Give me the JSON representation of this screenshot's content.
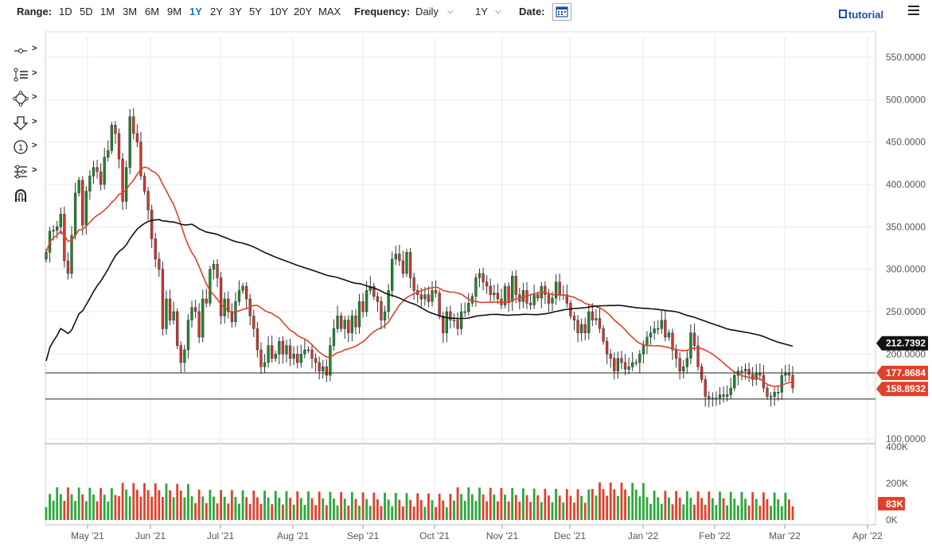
{
  "toolbar": {
    "range_label": "Range:",
    "ranges": [
      "1D",
      "5D",
      "1M",
      "3M",
      "6M",
      "9M",
      "1Y",
      "2Y",
      "3Y",
      "5Y",
      "10Y",
      "20Y",
      "MAX"
    ],
    "active_range": "1Y",
    "frequency_label": "Frequency:",
    "frequency_value": "Daily",
    "period_value": "1Y",
    "date_label": "Date:",
    "tutorial_label": "tutorial"
  },
  "tools": [
    {
      "icon": "crosshair-line-icon"
    },
    {
      "icon": "trend-lines-icon"
    },
    {
      "icon": "shapes-icon"
    },
    {
      "icon": "arrow-down-icon"
    },
    {
      "icon": "number-marker-icon",
      "glyph": "1"
    },
    {
      "icon": "fibonacci-tool-icon"
    },
    {
      "icon": "magnet-icon"
    }
  ],
  "colors": {
    "up": "#1a8a2a",
    "down": "#d9342b",
    "ma_fast": "#e2402b",
    "ma_slow": "#111111",
    "grid": "#e8e8e8"
  },
  "chart_data": {
    "type": "candlestick",
    "title": "",
    "xlabel": "",
    "ylabel": "",
    "ylim": [
      100,
      560
    ],
    "x_ticks": [
      "May '21",
      "Jun '21",
      "Jul '21",
      "Aug '21",
      "Sep '21",
      "Oct '21",
      "Nov '21",
      "Dec '21",
      "Jan '22",
      "Feb '22",
      "Mar '22",
      "Apr '22"
    ],
    "y_ticks": [
      "550.0000",
      "500.0000",
      "450.0000",
      "400.0000",
      "350.0000",
      "300.0000",
      "250.0000",
      "200.0000",
      "100.0000"
    ],
    "y_tick_values": [
      550,
      500,
      450,
      400,
      350,
      300,
      250,
      200,
      100
    ],
    "price_labels": [
      {
        "text": "212.7392",
        "value": 212.7392,
        "style": "dark"
      },
      {
        "text": "177.8684",
        "value": 177.8684,
        "style": "red"
      },
      {
        "text": "158.8932",
        "value": 158.8932,
        "style": "red"
      }
    ],
    "horizontal_lines": [
      177.8684,
      147
    ],
    "series": [
      {
        "name": "close",
        "values": [
          320,
          345,
          346,
          350,
          365,
          310,
          295,
          340,
          390,
          405,
          352,
          392,
          410,
          420,
          415,
          400,
          432,
          440,
          470,
          460,
          430,
          380,
          420,
          480,
          460,
          450,
          410,
          392,
          370,
          336,
          312,
          300,
          230,
          265,
          240,
          250,
          210,
          190,
          205,
          240,
          255,
          250,
          220,
          265,
          260,
          300,
          306,
          290,
          245,
          265,
          250,
          238,
          262,
          275,
          280,
          265,
          245,
          230,
          205,
          185,
          190,
          210,
          195,
          200,
          215,
          200,
          210,
          195,
          200,
          190,
          200,
          205,
          205,
          195,
          190,
          180,
          185,
          175,
          210,
          230,
          245,
          230,
          240,
          225,
          245,
          232,
          262,
          250,
          275,
          280,
          268,
          262,
          240,
          250,
          275,
          312,
          318,
          310,
          295,
          320,
          290,
          275,
          270,
          265,
          270,
          262,
          275,
          272,
          245,
          225,
          250,
          240,
          240,
          230,
          250,
          250,
          260,
          268,
          290,
          295,
          285,
          280,
          270,
          272,
          265,
          258,
          280,
          262,
          292,
          270,
          262,
          275,
          260,
          258,
          270,
          266,
          280,
          270,
          260,
          266,
          285,
          270,
          270,
          260,
          245,
          240,
          225,
          235,
          225,
          250,
          240,
          242,
          230,
          215,
          200,
          195,
          180,
          195,
          190,
          182,
          185,
          190,
          190,
          200,
          210,
          220,
          225,
          230,
          230,
          240,
          220,
          225,
          205,
          195,
          180,
          185,
          195,
          225,
          210,
          185,
          170,
          150,
          148,
          148,
          148,
          152,
          150,
          152,
          160,
          175,
          180,
          180,
          182,
          176,
          170,
          178,
          175,
          160,
          150,
          150,
          155,
          155,
          175,
          178,
          175,
          160
        ]
      }
    ],
    "volume": {
      "ylim": [
        0,
        400
      ],
      "y_ticks": [
        "400K",
        "200K",
        "0K"
      ],
      "last_label": "83K"
    }
  }
}
